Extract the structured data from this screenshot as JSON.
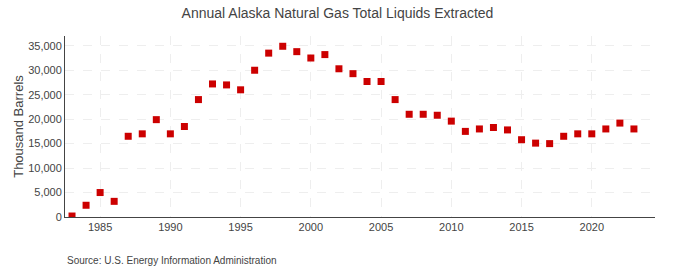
{
  "chart_data": {
    "type": "scatter",
    "title": "Annual Alaska Natural Gas Total Liquids Extracted",
    "ylabel": "Thousand Barrels",
    "source": "Source: U.S. Energy Information Administration",
    "x": [
      1983,
      1984,
      1985,
      1986,
      1987,
      1988,
      1989,
      1990,
      1991,
      1992,
      1993,
      1994,
      1995,
      1996,
      1997,
      1998,
      1999,
      2000,
      2001,
      2002,
      2003,
      2004,
      2005,
      2006,
      2007,
      2008,
      2009,
      2010,
      2011,
      2012,
      2013,
      2014,
      2015,
      2016,
      2017,
      2018,
      2019,
      2020,
      2021,
      2022,
      2023
    ],
    "values": [
      200,
      2400,
      5000,
      3200,
      16500,
      17000,
      19900,
      17000,
      18500,
      24000,
      27200,
      27000,
      26000,
      30000,
      33500,
      34900,
      33800,
      32500,
      33200,
      30300,
      29300,
      27700,
      27700,
      24000,
      21000,
      21000,
      20800,
      19600,
      17500,
      18000,
      18300,
      17800,
      15800,
      15100,
      15000,
      16500,
      17000,
      17000,
      18000,
      19200,
      18000
    ],
    "color": "#cc0000",
    "marker": "square",
    "xlim": [
      1982.5,
      2024.5
    ],
    "xticks": [
      1985,
      1990,
      1995,
      2000,
      2005,
      2010,
      2015,
      2020
    ],
    "ylim": [
      0,
      37000
    ],
    "yticks": [
      0,
      {
        "value": 5000,
        "label": "5,000"
      },
      {
        "value": 10000,
        "label": "10,000"
      },
      {
        "value": 15000,
        "label": "15,000"
      },
      {
        "value": 20000,
        "label": "20,000"
      },
      {
        "value": 25000,
        "label": "25,000"
      },
      {
        "value": 30000,
        "label": "30,000"
      },
      {
        "value": 35000,
        "label": "35,000"
      }
    ],
    "grid": true
  }
}
